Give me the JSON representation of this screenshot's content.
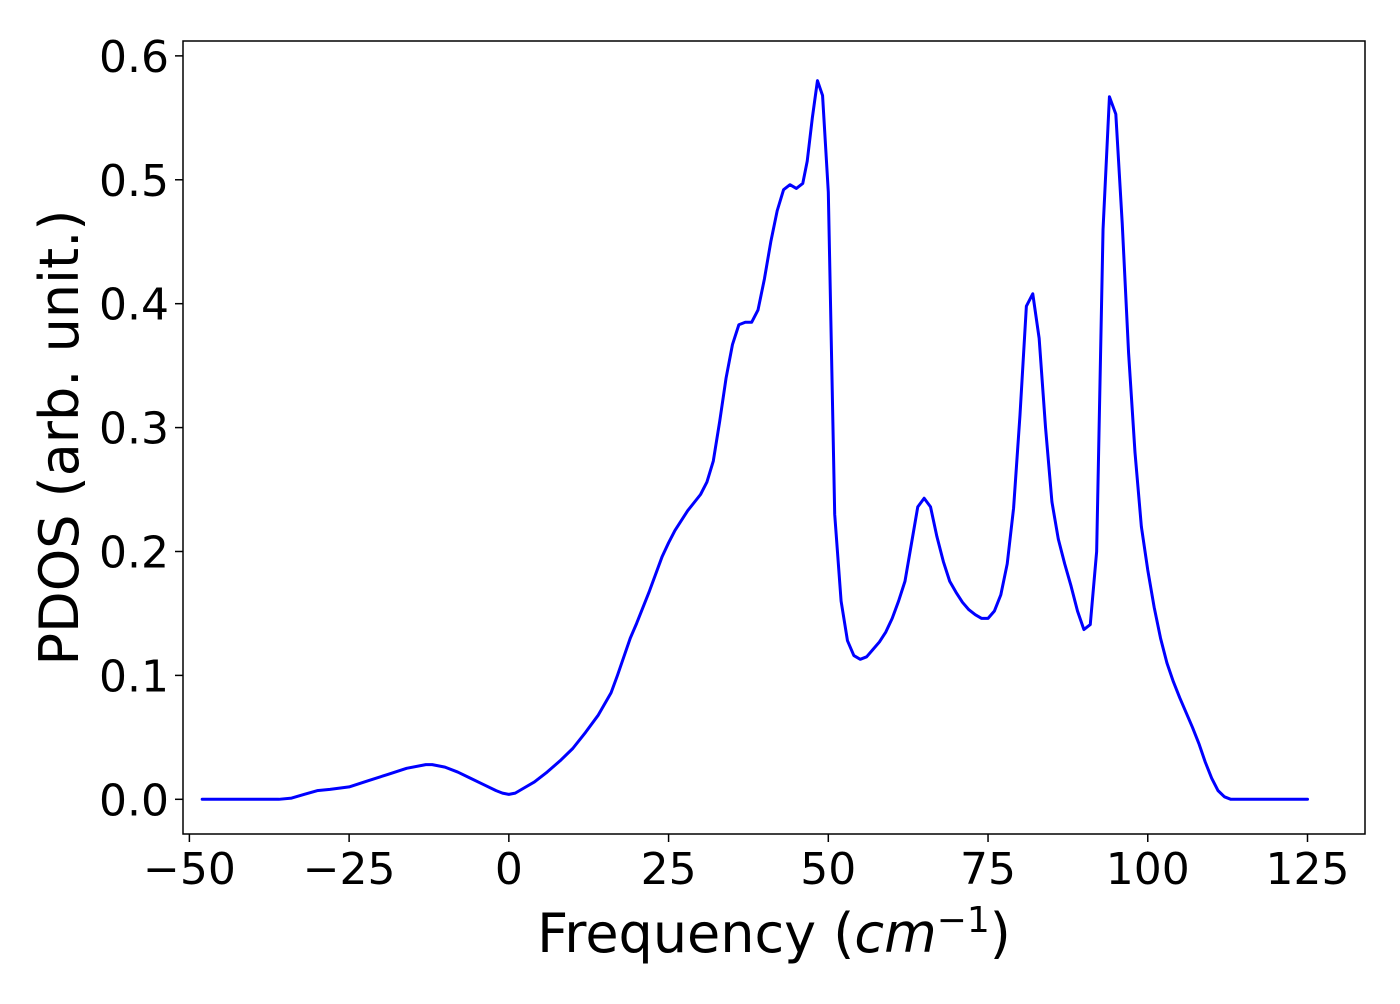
{
  "chart_data": {
    "type": "line",
    "title": "",
    "xlabel_prefix": "Frequency (",
    "xlabel_unit": "cm",
    "xlabel_exponent": "−1",
    "xlabel_suffix": ")",
    "ylabel": "PDOS (arb. unit.)",
    "xlim": [
      -51,
      134
    ],
    "ylim": [
      -0.028,
      0.612
    ],
    "xticks": [
      -50,
      -25,
      0,
      25,
      50,
      75,
      100,
      125
    ],
    "xtick_labels": [
      "−50",
      "−25",
      "0",
      "25",
      "50",
      "75",
      "100",
      "125"
    ],
    "yticks": [
      0.0,
      0.1,
      0.2,
      0.3,
      0.4,
      0.5,
      0.6
    ],
    "ytick_labels": [
      "0.0",
      "0.1",
      "0.2",
      "0.3",
      "0.4",
      "0.5",
      "0.6"
    ],
    "grid": false,
    "legend": "none",
    "line_color": "#0000ff",
    "series": [
      {
        "x": [
          -48,
          -44,
          -40,
          -36,
          -34,
          -32,
          -30,
          -28,
          -25,
          -22,
          -19,
          -16,
          -13,
          -12,
          -10,
          -8,
          -6,
          -4,
          -2,
          -1,
          0,
          1,
          2,
          4,
          6,
          8,
          10,
          12,
          14,
          16,
          17,
          18,
          19,
          20,
          22,
          24,
          25,
          26,
          28,
          30,
          31,
          32,
          33,
          34,
          35,
          36,
          37,
          38,
          39,
          40,
          41,
          42,
          43,
          44,
          45,
          46,
          46.7,
          47.5,
          48.3,
          49.1,
          50,
          51,
          52,
          53,
          54,
          55,
          56,
          57,
          58,
          59,
          60,
          61,
          62,
          63,
          64,
          65,
          66,
          67,
          68,
          69,
          70,
          71,
          72,
          73,
          74,
          75,
          76,
          77,
          78,
          79,
          80,
          81,
          82,
          83,
          84,
          85,
          86,
          87,
          88,
          89,
          90,
          91,
          92,
          93,
          94,
          95,
          96,
          97,
          98,
          99,
          100,
          101,
          102,
          103,
          104,
          105,
          106,
          107,
          108,
          109,
          110,
          111,
          112,
          113,
          114,
          116,
          118,
          120,
          122,
          125
        ],
        "y": [
          0.0,
          0.0,
          0.0,
          0.0,
          0.001,
          0.004,
          0.007,
          0.008,
          0.01,
          0.015,
          0.02,
          0.025,
          0.028,
          0.028,
          0.026,
          0.022,
          0.017,
          0.012,
          0.007,
          0.005,
          0.004,
          0.005,
          0.008,
          0.014,
          0.022,
          0.031,
          0.041,
          0.054,
          0.068,
          0.086,
          0.1,
          0.115,
          0.13,
          0.142,
          0.168,
          0.196,
          0.207,
          0.217,
          0.233,
          0.246,
          0.256,
          0.273,
          0.305,
          0.34,
          0.367,
          0.383,
          0.385,
          0.385,
          0.395,
          0.42,
          0.45,
          0.475,
          0.492,
          0.496,
          0.493,
          0.497,
          0.515,
          0.55,
          0.58,
          0.568,
          0.49,
          0.23,
          0.16,
          0.128,
          0.116,
          0.113,
          0.115,
          0.121,
          0.127,
          0.135,
          0.146,
          0.16,
          0.176,
          0.206,
          0.236,
          0.243,
          0.236,
          0.212,
          0.192,
          0.176,
          0.167,
          0.159,
          0.153,
          0.149,
          0.146,
          0.146,
          0.152,
          0.165,
          0.19,
          0.235,
          0.31,
          0.398,
          0.408,
          0.372,
          0.3,
          0.24,
          0.21,
          0.19,
          0.172,
          0.152,
          0.137,
          0.141,
          0.2,
          0.46,
          0.567,
          0.553,
          0.465,
          0.36,
          0.28,
          0.22,
          0.185,
          0.155,
          0.13,
          0.11,
          0.095,
          0.082,
          0.07,
          0.058,
          0.045,
          0.03,
          0.017,
          0.007,
          0.002,
          0.0,
          0.0,
          0.0,
          0.0,
          0.0,
          0.0,
          0.0
        ]
      }
    ]
  }
}
